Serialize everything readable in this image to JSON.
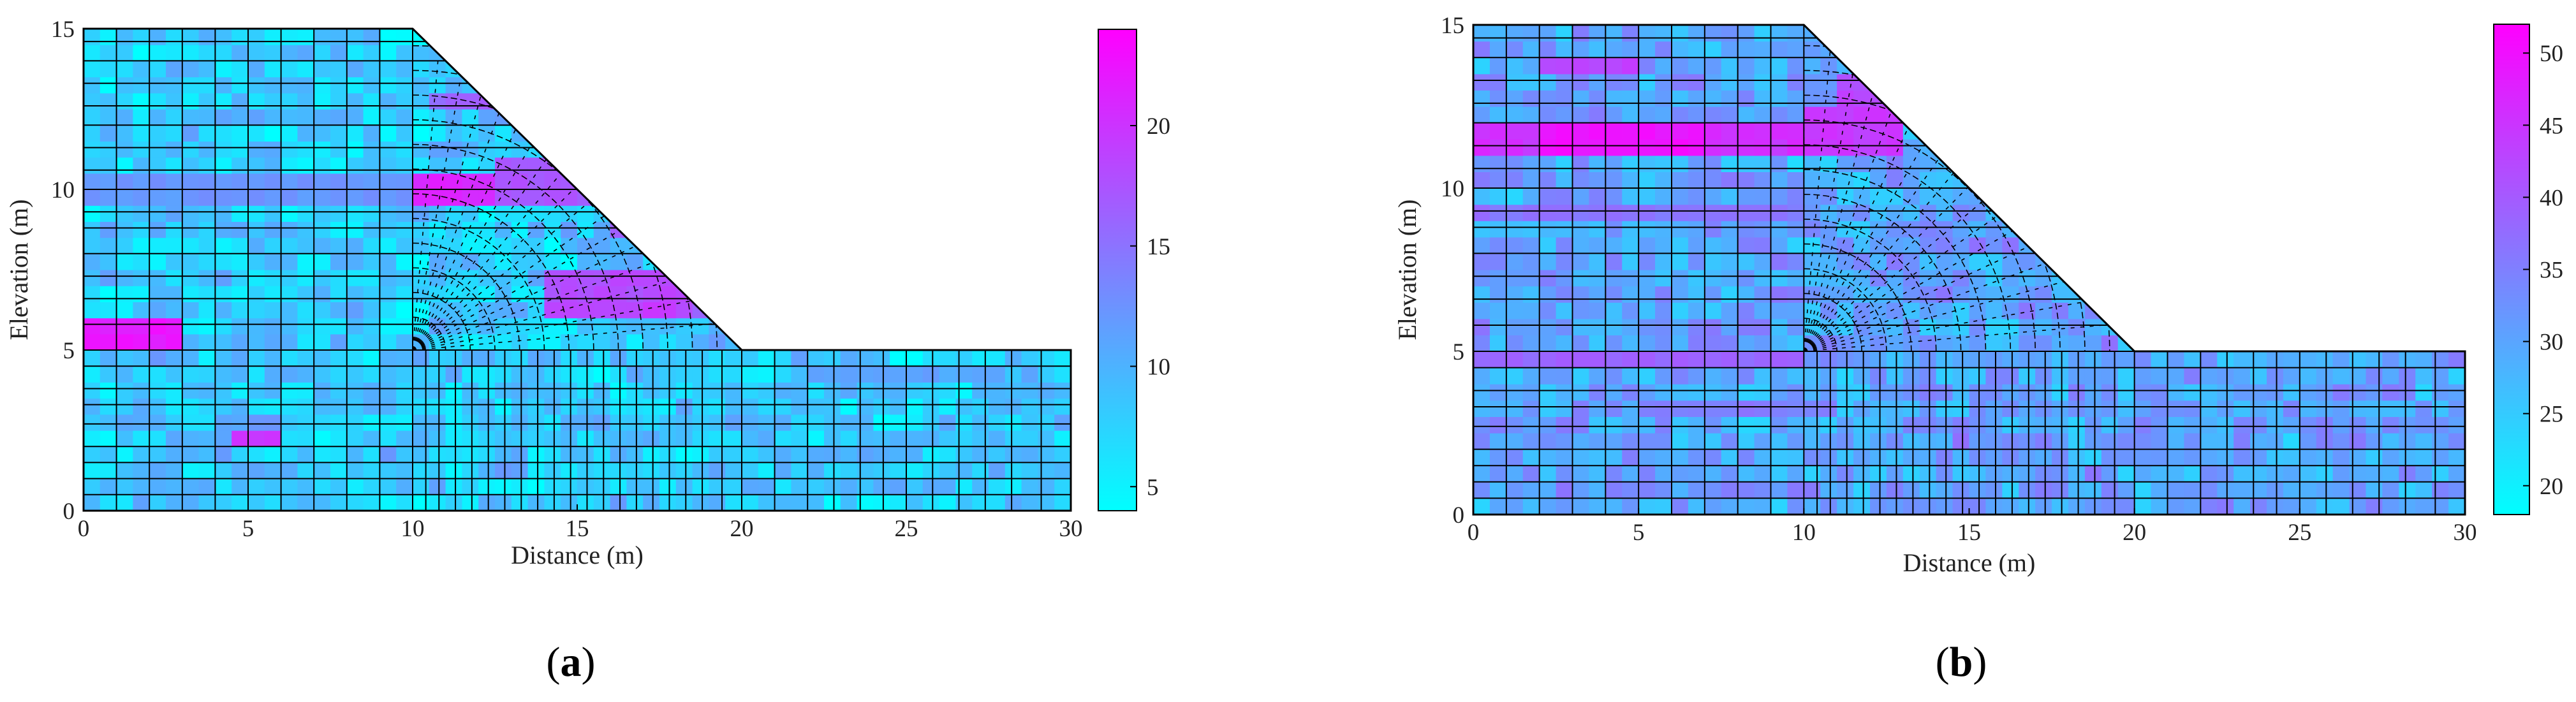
{
  "colors": {
    "colormap_low": "#00ffff",
    "colormap_high": "#ff00ff",
    "mesh_line": "#000000",
    "background": "#ffffff"
  },
  "chart_data": [
    {
      "type": "heatmap",
      "title": "",
      "panel_label": "a",
      "xlabel": "Distance (m)",
      "ylabel": "Elevation (m)",
      "xlim": [
        0,
        30
      ],
      "ylim": [
        0,
        15
      ],
      "xticks": [
        0,
        5,
        10,
        15,
        20,
        25,
        30
      ],
      "yticks": [
        0,
        5,
        10,
        15
      ],
      "colorbar": {
        "range": [
          4,
          24
        ],
        "ticks": [
          5,
          10,
          15,
          20
        ]
      },
      "geometry": {
        "polygon": [
          [
            0,
            0
          ],
          [
            30,
            0
          ],
          [
            30,
            5
          ],
          [
            20,
            5
          ],
          [
            10,
            15
          ],
          [
            0,
            15
          ]
        ],
        "slope_toe": [
          20,
          5
        ],
        "slope_crest": [
          10,
          15
        ]
      },
      "x_edges": [
        0,
        0.5,
        1,
        1.5,
        2,
        2.5,
        3,
        3.5,
        4,
        4.5,
        5,
        5.5,
        6,
        6.5,
        7,
        7.5,
        8,
        8.5,
        9,
        9.5,
        10,
        10.5,
        11,
        11.5,
        12,
        12.5,
        13,
        13.5,
        14,
        14.5,
        15,
        15.5,
        16,
        16.5,
        17,
        17.5,
        18,
        18.5,
        19,
        19.5,
        20,
        20.5,
        21,
        21.5,
        22,
        22.5,
        23,
        23.5,
        24,
        24.5,
        25,
        25.5,
        26,
        26.5,
        27,
        27.5,
        28,
        28.5,
        29,
        29.5,
        30
      ],
      "y_edges": [
        0,
        0.5,
        1,
        1.5,
        2,
        2.5,
        3,
        3.5,
        4,
        4.5,
        5,
        5.5,
        6,
        6.5,
        7,
        7.5,
        8,
        8.5,
        9,
        9.5,
        10,
        10.5,
        11,
        11.5,
        12,
        12.5,
        13,
        13.5,
        14,
        14.5,
        15
      ],
      "base_value": 8,
      "amplitude": 3,
      "hotspots": [
        {
          "x": 0,
          "y": 5.25,
          "w": 3,
          "h": 0.5,
          "value": 23
        },
        {
          "x": 10,
          "y": 9.75,
          "w": 2.5,
          "h": 0.8,
          "value": 22
        },
        {
          "x": 12.5,
          "y": 9.5,
          "w": 3,
          "h": 1.5,
          "value": 18
        },
        {
          "x": 14,
          "y": 6.2,
          "w": 4.5,
          "h": 1.2,
          "value": 19
        },
        {
          "x": 15,
          "y": 6.0,
          "w": 3,
          "h": 0.6,
          "value": 20
        },
        {
          "x": 10.5,
          "y": 12.3,
          "w": 2.5,
          "h": 0.6,
          "value": 17
        },
        {
          "x": 16,
          "y": 8.3,
          "w": 1.5,
          "h": 0.7,
          "value": 18
        },
        {
          "x": 4.5,
          "y": 1.8,
          "w": 1.5,
          "h": 0.5,
          "value": 21
        },
        {
          "x": 0,
          "y": 9.75,
          "w": 10,
          "h": 0.5,
          "value": 13
        },
        {
          "x": 22,
          "y": 3.8,
          "w": 6,
          "h": 0.5,
          "value": 12
        },
        {
          "x": 18,
          "y": 6.0,
          "w": 2,
          "h": 0.6,
          "value": 16
        },
        {
          "x": 4,
          "y": 12.2,
          "w": 4,
          "h": 0.5,
          "value": 11
        }
      ]
    },
    {
      "type": "heatmap",
      "title": "",
      "panel_label": "b",
      "xlabel": "Distance (m)",
      "ylabel": "Elevation (m)",
      "xlim": [
        0,
        30
      ],
      "ylim": [
        0,
        15
      ],
      "xticks": [
        0,
        5,
        10,
        15,
        20,
        25,
        30
      ],
      "yticks": [
        0,
        5,
        10,
        15
      ],
      "colorbar": {
        "range": [
          18,
          52
        ],
        "ticks": [
          20,
          25,
          30,
          35,
          40,
          45,
          50
        ]
      },
      "geometry": {
        "polygon": [
          [
            0,
            0
          ],
          [
            30,
            0
          ],
          [
            30,
            5
          ],
          [
            20,
            5
          ],
          [
            10,
            15
          ],
          [
            0,
            15
          ]
        ],
        "slope_toe": [
          20,
          5
        ],
        "slope_crest": [
          10,
          15
        ]
      },
      "x_edges": [
        0,
        0.5,
        1,
        1.5,
        2,
        2.5,
        3,
        3.5,
        4,
        4.5,
        5,
        5.5,
        6,
        6.5,
        7,
        7.5,
        8,
        8.5,
        9,
        9.5,
        10,
        10.5,
        11,
        11.5,
        12,
        12.5,
        13,
        13.5,
        14,
        14.5,
        15,
        15.5,
        16,
        16.5,
        17,
        17.5,
        18,
        18.5,
        19,
        19.5,
        20,
        20.5,
        21,
        21.5,
        22,
        22.5,
        23,
        23.5,
        24,
        24.5,
        25,
        25.5,
        26,
        26.5,
        27,
        27.5,
        28,
        28.5,
        29,
        29.5,
        30
      ],
      "y_edges": [
        0,
        0.5,
        1,
        1.5,
        2,
        2.5,
        3,
        3.5,
        4,
        4.5,
        5,
        5.5,
        6,
        6.5,
        7,
        7.5,
        8,
        8.5,
        9,
        9.5,
        10,
        10.5,
        11,
        11.5,
        12,
        12.5,
        13,
        13.5,
        14,
        14.5,
        15
      ],
      "base_value": 30,
      "amplitude": 5,
      "hotspots": [
        {
          "x": 0,
          "y": 11.0,
          "w": 10,
          "h": 0.9,
          "value": 47
        },
        {
          "x": 2,
          "y": 11.1,
          "w": 5,
          "h": 0.7,
          "value": 51
        },
        {
          "x": 10,
          "y": 11.0,
          "w": 3,
          "h": 1.5,
          "value": 46
        },
        {
          "x": 11,
          "y": 12.5,
          "w": 2,
          "h": 1,
          "value": 44
        },
        {
          "x": 2,
          "y": 13.3,
          "w": 3,
          "h": 0.5,
          "value": 45
        },
        {
          "x": 0,
          "y": 4.7,
          "w": 10,
          "h": 0.5,
          "value": 40
        },
        {
          "x": 10,
          "y": 5.5,
          "w": 6,
          "h": 2.5,
          "value": 20
        },
        {
          "x": 12,
          "y": 7.5,
          "w": 4,
          "h": 1.5,
          "value": 21
        },
        {
          "x": 11,
          "y": 1.5,
          "w": 8,
          "h": 1.2,
          "value": 22
        },
        {
          "x": 23,
          "y": 2.5,
          "w": 6,
          "h": 1.5,
          "value": 23
        },
        {
          "x": 0,
          "y": 9.2,
          "w": 10,
          "h": 0.5,
          "value": 38
        },
        {
          "x": 5,
          "y": 3.2,
          "w": 6,
          "h": 0.5,
          "value": 37
        }
      ]
    }
  ]
}
